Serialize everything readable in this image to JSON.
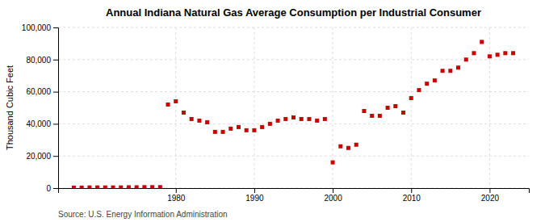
{
  "chart_data": {
    "type": "scatter",
    "title": "Annual Indiana Natural Gas Average Consumption per Industrial Consumer",
    "ylabel": "Thousand Cubic Feet",
    "annotation": "Source: U.S. Energy Information Administration",
    "x": [
      1967,
      1968,
      1969,
      1970,
      1971,
      1972,
      1973,
      1974,
      1975,
      1976,
      1977,
      1978,
      1979,
      1980,
      1981,
      1982,
      1983,
      1984,
      1985,
      1986,
      1987,
      1988,
      1989,
      1990,
      1991,
      1992,
      1993,
      1994,
      1995,
      1996,
      1997,
      1998,
      1999,
      2000,
      2001,
      2002,
      2003,
      2004,
      2005,
      2006,
      2007,
      2008,
      2009,
      2010,
      2011,
      2012,
      2013,
      2014,
      2015,
      2016,
      2017,
      2018,
      2019,
      2020,
      2021,
      2022,
      2023
    ],
    "values": [
      300,
      300,
      400,
      400,
      400,
      400,
      400,
      500,
      500,
      600,
      600,
      600,
      52000,
      54000,
      47000,
      43000,
      42000,
      41000,
      35000,
      35000,
      37000,
      38000,
      36000,
      36000,
      38000,
      40000,
      42000,
      43000,
      44000,
      43000,
      43000,
      42000,
      43000,
      16000,
      26000,
      25000,
      27000,
      48000,
      45000,
      45000,
      50000,
      51000,
      47000,
      56000,
      61000,
      65000,
      67000,
      73000,
      73000,
      75000,
      80000,
      84000,
      91000,
      82000,
      83000,
      84000,
      84000
    ],
    "color": "#cc0000",
    "marker": "square",
    "xlim": [
      1965,
      2025
    ],
    "xticks": [
      1980,
      1990,
      2000,
      2010,
      2020
    ],
    "ylim": [
      0,
      100000
    ],
    "yticks": [
      0,
      {
        "value": 20000,
        "label": "20,000"
      },
      {
        "value": 40000,
        "label": "40,000"
      },
      {
        "value": 60000,
        "label": "60,000"
      },
      {
        "value": 80000,
        "label": "80,000"
      },
      {
        "value": 100000,
        "label": "100,000"
      }
    ],
    "grid": true
  }
}
